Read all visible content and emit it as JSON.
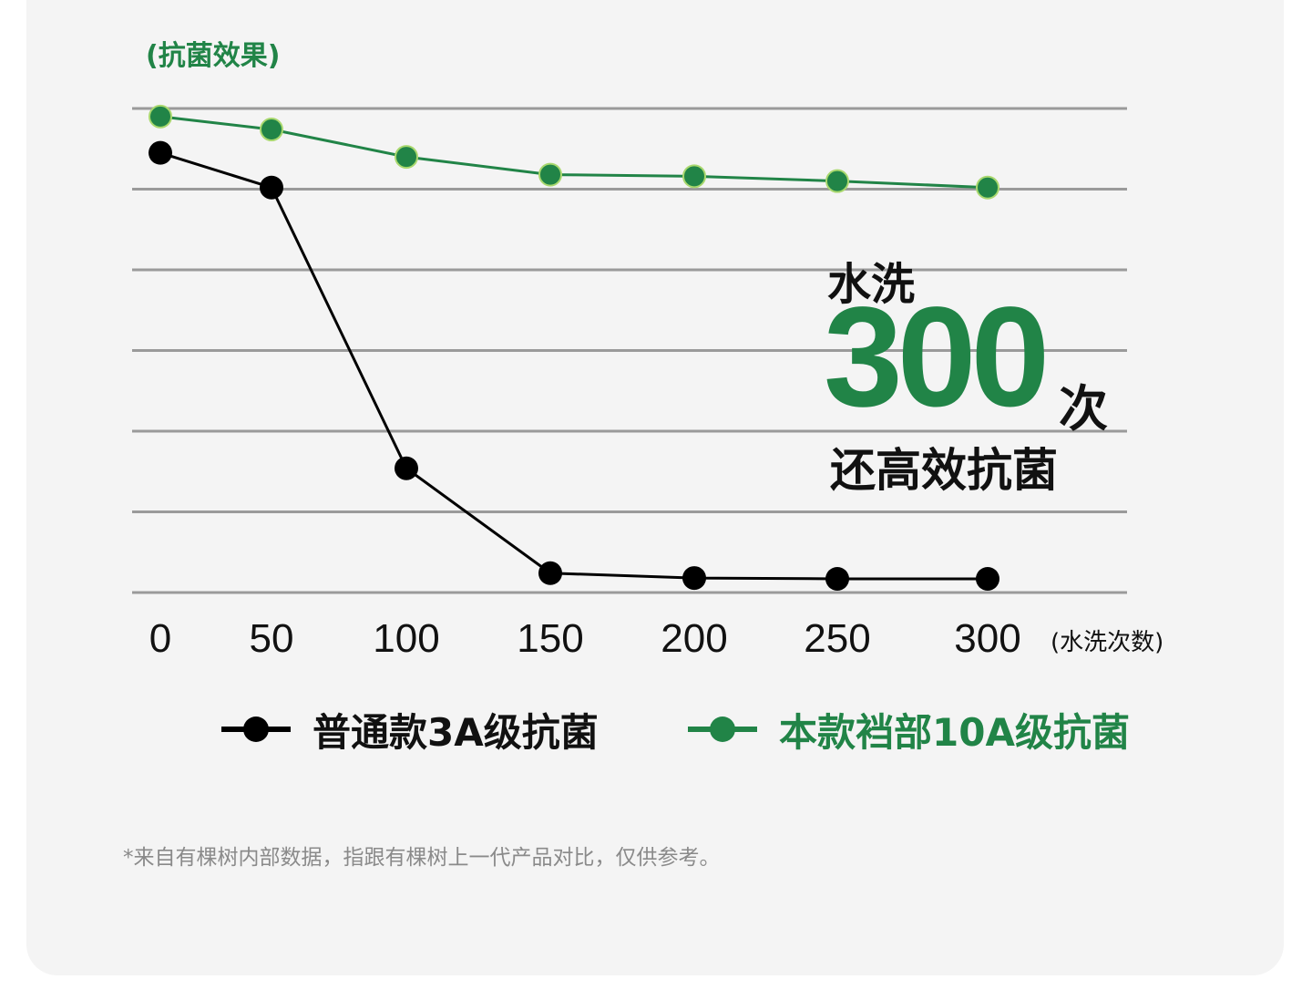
{
  "chart_data": {
    "type": "line",
    "y_title": "(抗菌效果)",
    "x_label": "(水洗次数)",
    "x": [
      "0",
      "50",
      "100",
      "150",
      "200",
      "250",
      "300"
    ],
    "ylim": [
      0,
      6
    ],
    "grid": true,
    "y_gridlines": 7,
    "series": [
      {
        "name": "普通款3A级抗菌",
        "color": "#000000",
        "values": [
          5.45,
          5.02,
          1.54,
          0.24,
          0.18,
          0.17,
          0.17
        ]
      },
      {
        "name": "本款裆部10A级抗菌",
        "color": "#218447",
        "values": [
          5.9,
          5.74,
          5.4,
          5.18,
          5.16,
          5.1,
          5.02
        ]
      }
    ],
    "legend_position": "bottom"
  },
  "callout": {
    "top": "水洗",
    "number": "300",
    "unit": "次",
    "bottom": "还高效抗菌"
  },
  "footnote": "*来自有棵树内部数据，指跟有棵树上一代产品对比，仅供参考。",
  "colors": {
    "accent": "#218447",
    "dark": "#000000",
    "grid": "#9a9a9a",
    "background": "#f4f4f4"
  }
}
